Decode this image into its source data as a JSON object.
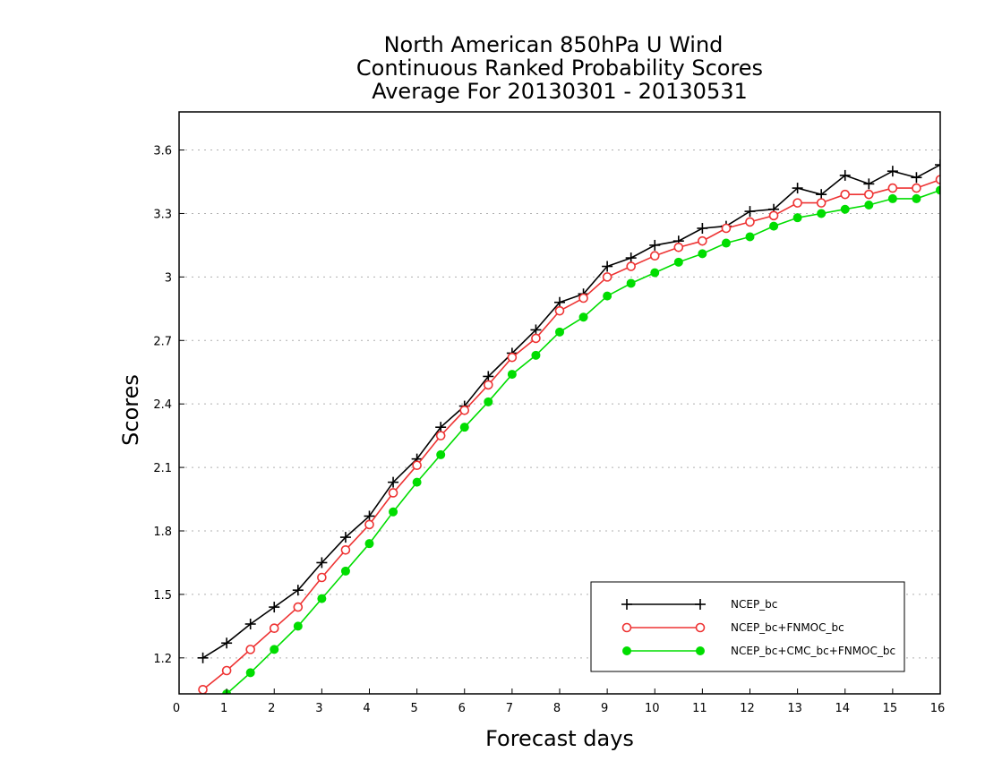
{
  "chart_data": {
    "type": "line",
    "title": [
      "North American 850hPa U Wind",
      "Continuous Ranked Probability Scores",
      "Average For 20130301 - 20130531"
    ],
    "xlabel": "Forecast days",
    "ylabel": "Scores",
    "xlim": [
      0,
      16
    ],
    "ylim": [
      1.03,
      3.78
    ],
    "xticks": [
      "0",
      "1",
      "2",
      "3",
      "4",
      "5",
      "6",
      "7",
      "8",
      "9",
      "10",
      "11",
      "12",
      "13",
      "14",
      "15",
      "16"
    ],
    "yticks": [
      "1.2",
      "1.5",
      "1.8",
      "2.1",
      "2.4",
      "2.7",
      "3",
      "3.3",
      "3.6"
    ],
    "grid": "horizontal dotted",
    "legend_position": "bottom-right",
    "x": [
      0.5,
      1,
      1.5,
      2,
      2.5,
      3,
      3.5,
      4,
      4.5,
      5,
      5.5,
      6,
      6.5,
      7,
      7.5,
      8,
      8.5,
      9,
      9.5,
      10,
      10.5,
      11,
      11.5,
      12,
      12.5,
      13,
      13.5,
      14,
      14.5,
      15,
      15.5,
      16
    ],
    "series": [
      {
        "name": "NCEP_bc",
        "color": "#000000",
        "marker": "plus",
        "values": [
          1.2,
          1.27,
          1.36,
          1.44,
          1.52,
          1.65,
          1.77,
          1.87,
          2.03,
          2.14,
          2.29,
          2.39,
          2.53,
          2.64,
          2.75,
          2.88,
          2.92,
          3.05,
          3.09,
          3.15,
          3.17,
          3.23,
          3.24,
          3.31,
          3.32,
          3.42,
          3.39,
          3.48,
          3.44,
          3.5,
          3.47,
          3.53
        ]
      },
      {
        "name": "NCEP_bc+FNMOC_bc",
        "color": "#ee3333",
        "marker": "open-circle",
        "values": [
          1.05,
          1.14,
          1.24,
          1.34,
          1.44,
          1.58,
          1.71,
          1.83,
          1.98,
          2.11,
          2.25,
          2.37,
          2.49,
          2.62,
          2.71,
          2.84,
          2.9,
          3.0,
          3.05,
          3.1,
          3.14,
          3.17,
          3.23,
          3.26,
          3.29,
          3.35,
          3.35,
          3.39,
          3.39,
          3.42,
          3.42,
          3.46
        ]
      },
      {
        "name": "NCEP_bc+CMC_bc+FNMOC_bc",
        "color": "#00dd00",
        "marker": "filled-circle",
        "values": [
          0.96,
          1.03,
          1.13,
          1.24,
          1.35,
          1.48,
          1.61,
          1.74,
          1.89,
          2.03,
          2.16,
          2.29,
          2.41,
          2.54,
          2.63,
          2.74,
          2.81,
          2.91,
          2.97,
          3.02,
          3.07,
          3.11,
          3.16,
          3.19,
          3.24,
          3.28,
          3.3,
          3.32,
          3.34,
          3.37,
          3.37,
          3.41
        ]
      }
    ]
  }
}
